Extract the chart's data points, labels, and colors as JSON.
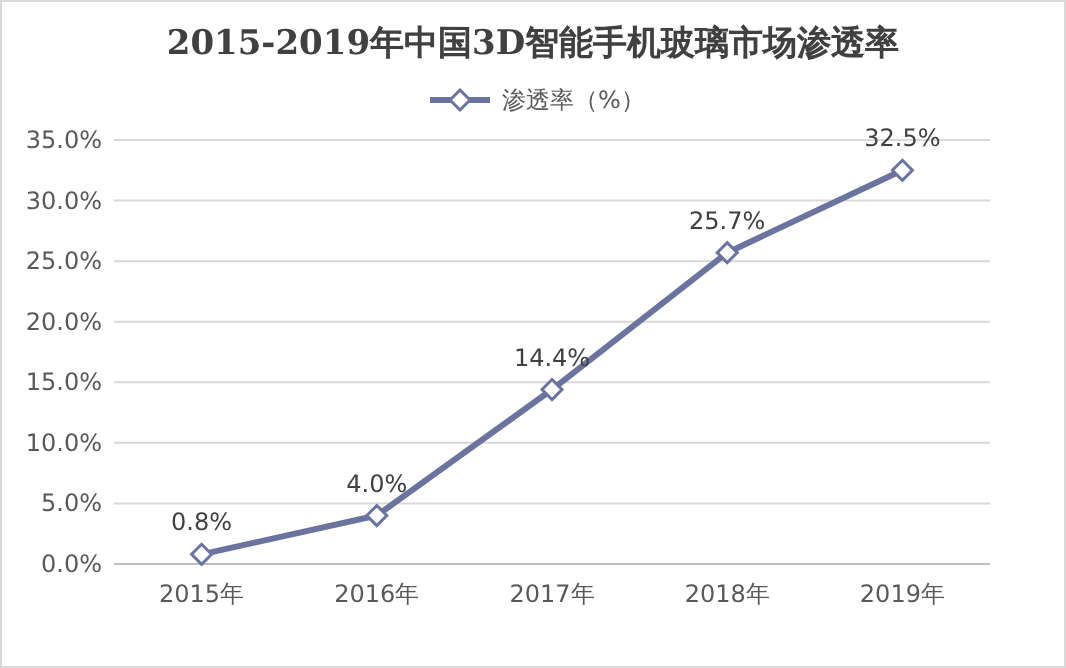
{
  "chart_data": {
    "type": "line",
    "title": "2015-2019年中国3D智能手机玻璃市场渗透率",
    "categories": [
      "2015年",
      "2016年",
      "2017年",
      "2018年",
      "2019年"
    ],
    "series": [
      {
        "name": "渗透率（%）",
        "color": "#6b739f",
        "values": [
          0.8,
          4.0,
          14.4,
          25.7,
          32.5
        ],
        "value_labels": [
          "0.8%",
          "4.0%",
          "14.4%",
          "25.7%",
          "32.5%"
        ]
      }
    ],
    "ylim": [
      0,
      35
    ],
    "yticks": [
      {
        "value": 0,
        "label": "0.0%"
      },
      {
        "value": 5,
        "label": "5.0%"
      },
      {
        "value": 10,
        "label": "10.0%"
      },
      {
        "value": 15,
        "label": "15.0%"
      },
      {
        "value": 20,
        "label": "20.0%"
      },
      {
        "value": 25,
        "label": "25.0%"
      },
      {
        "value": 30,
        "label": "30.0%"
      },
      {
        "value": 35,
        "label": "35.0%"
      }
    ],
    "grid": "y",
    "legend": "top",
    "marker": "diamond",
    "line_style": "solid"
  }
}
